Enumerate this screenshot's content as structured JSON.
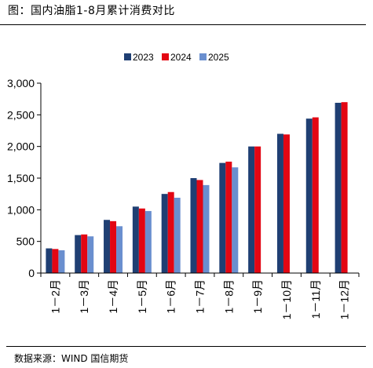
{
  "header": {
    "title": "图：国内油脂1-8月累计消费对比"
  },
  "footer": {
    "source": "数据来源：WIND 国信期货"
  },
  "chart_data": {
    "type": "bar",
    "title": "",
    "xlabel": "",
    "ylabel": "",
    "categories": [
      "1－2月",
      "1－3月",
      "1－4月",
      "1－5月",
      "1－6月",
      "1－7月",
      "1－8月",
      "1－9月",
      "1－10月",
      "1－11月",
      "1－12月"
    ],
    "series": [
      {
        "name": "2023",
        "color": "#1f3f73",
        "values": [
          390,
          600,
          840,
          1050,
          1250,
          1500,
          1740,
          2000,
          2200,
          2440,
          2690
        ]
      },
      {
        "name": "2024",
        "color": "#e30613",
        "values": [
          380,
          610,
          820,
          1020,
          1280,
          1470,
          1760,
          2000,
          2190,
          2460,
          2700
        ]
      },
      {
        "name": "2025",
        "color": "#6a8fcf",
        "values": [
          360,
          580,
          740,
          980,
          1190,
          1390,
          1670,
          null,
          null,
          null,
          null
        ]
      }
    ],
    "ylim": [
      0,
      3000
    ],
    "yticks": [
      0,
      500,
      1000,
      1500,
      2000,
      2500,
      3000
    ],
    "ytick_labels": [
      "0",
      "500",
      "1,000",
      "1,500",
      "2,000",
      "2,500",
      "3,000"
    ],
    "grid": false,
    "legend": "top-center"
  }
}
